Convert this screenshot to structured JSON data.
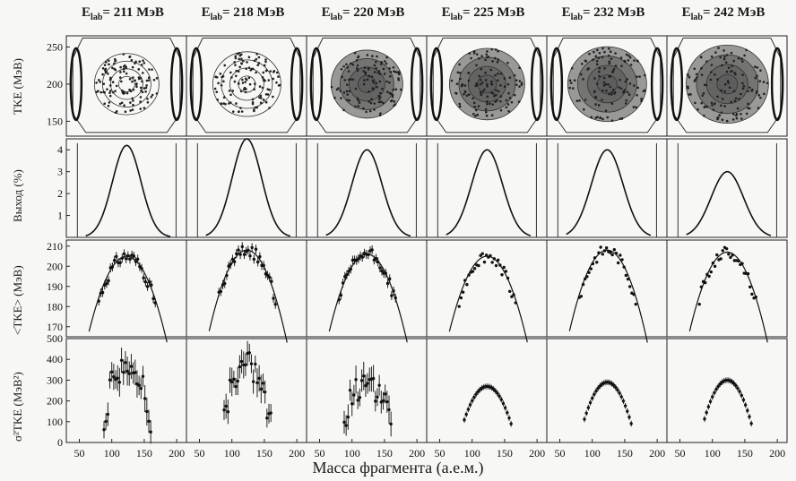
{
  "figure": {
    "columns": [
      {
        "prefix": "E",
        "sub": "lab",
        "value": "= 211 МэВ"
      },
      {
        "prefix": "E",
        "sub": "lab",
        "value": "= 218 МэВ"
      },
      {
        "prefix": "E",
        "sub": "lab",
        "value": "= 220 МэВ"
      },
      {
        "prefix": "E",
        "sub": "lab",
        "value": "= 225 МэВ"
      },
      {
        "prefix": "E",
        "sub": "lab",
        "value": "= 232 МэВ"
      },
      {
        "prefix": "E",
        "sub": "lab",
        "value": "= 242 МэВ"
      }
    ],
    "row_labels": [
      "TKE (МэВ)",
      "Выход (%)",
      "<TKE> (МэВ)",
      "σ²TKE (МэВ²)"
    ],
    "y_ticks": {
      "tke": [
        "250",
        "200",
        "150"
      ],
      "yield": [
        "4",
        "3",
        "2",
        "1"
      ],
      "mean_tke": [
        "210",
        "200",
        "190",
        "180",
        "170"
      ],
      "variance": [
        "500",
        "400",
        "300",
        "200",
        "100",
        "0"
      ]
    },
    "x_ticks": [
      "50",
      "100",
      "150",
      "200"
    ],
    "x_label": "Масса фрагмента (а.е.м.)"
  },
  "chart_data": [
    {
      "type": "scatter",
      "panel": "TKE vs mass (contour)",
      "columns": [
        "211",
        "218",
        "220",
        "225",
        "232",
        "242"
      ],
      "ylabel": "TKE (МэВ)",
      "xlim": [
        30,
        215
      ],
      "ylim": [
        130,
        265
      ]
    },
    {
      "type": "line",
      "panel": "Mass yield",
      "columns": [
        "211",
        "218",
        "220",
        "225",
        "232",
        "242"
      ],
      "ylabel": "Выход (%)",
      "xlim": [
        30,
        215
      ],
      "ylim": [
        0,
        4.5
      ],
      "peak_values": [
        4.2,
        4.5,
        4.0,
        4.0,
        4.0,
        3.0
      ]
    },
    {
      "type": "scatter",
      "panel": "Mean TKE vs mass",
      "columns": [
        "211",
        "218",
        "220",
        "225",
        "232",
        "242"
      ],
      "ylabel": "<TKE> (МэВ)",
      "xlim": [
        30,
        215
      ],
      "ylim": [
        165,
        213
      ],
      "peak_values": [
        205,
        208,
        206,
        205,
        208,
        207
      ]
    },
    {
      "type": "scatter",
      "panel": "TKE variance vs mass",
      "columns": [
        "211",
        "218",
        "220",
        "225",
        "232",
        "242"
      ],
      "ylabel": "σ²TKE (МэВ²)",
      "xlim": [
        30,
        215
      ],
      "ylim": [
        0,
        500
      ],
      "peak_values": [
        380,
        380,
        290,
        270,
        290,
        300
      ]
    }
  ]
}
